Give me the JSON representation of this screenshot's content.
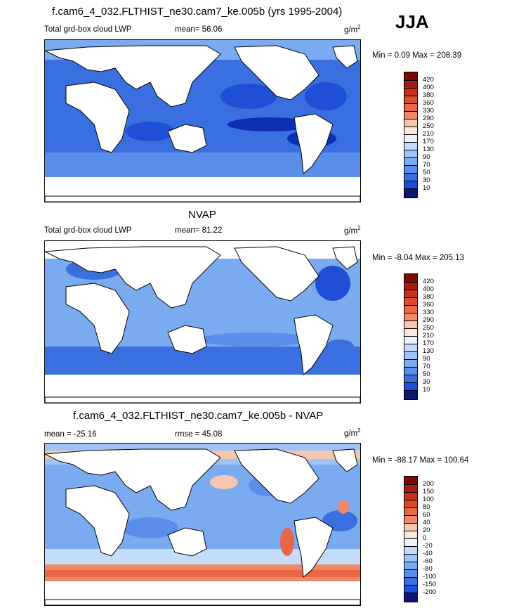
{
  "season": "JJA",
  "colors": {
    "blues": [
      "#0a1670",
      "#0d2fb3",
      "#1f4fd6",
      "#3a6fe0",
      "#5a8eea",
      "#7aaaf0",
      "#9dc4f5",
      "#c4dcf9",
      "#eaf2fd"
    ],
    "reds": [
      "#fbe7de",
      "#f6c7b0",
      "#f2a889",
      "#ee8866",
      "#e86746",
      "#dd4a2c",
      "#c8311c",
      "#a51c10",
      "#7a0a05"
    ],
    "land": "#ffffff",
    "coast": "#000000"
  },
  "panels": [
    {
      "title": "f.cam6_4_032.FLTHIST_ne30.cam7_ke.005b (yrs 1995-2004)",
      "left_label": "Total grd-box cloud LWP",
      "mid_label": "mean=  56.06",
      "units": "g/m",
      "units_exp": "2",
      "minmax": "Min =   0.09 Max = 208.39",
      "levels": [
        "420",
        "400",
        "380",
        "360",
        "330",
        "290",
        "250",
        "210",
        "170",
        "130",
        "90",
        "70",
        "50",
        "30",
        "10"
      ]
    },
    {
      "title": "NVAP",
      "left_label": "Total grd-box cloud LWP",
      "mid_label": "mean=  81.22",
      "units": "g/m",
      "units_exp": "2",
      "minmax": "Min =  -8.04 Max = 205.13",
      "levels": [
        "420",
        "400",
        "380",
        "360",
        "330",
        "290",
        "250",
        "210",
        "170",
        "130",
        "90",
        "70",
        "50",
        "30",
        "10"
      ]
    },
    {
      "title": "f.cam6_4_032.FLTHIST_ne30.cam7_ke.005b - NVAP",
      "left_label": "mean = -25.16",
      "mid_label": "rmse =  45.08",
      "units": "g/m",
      "units_exp": "2",
      "minmax": "Min = -88.17 Max = 100.64",
      "levels": [
        "200",
        "150",
        "100",
        "80",
        "60",
        "40",
        "20",
        "0",
        "-20",
        "-40",
        "-60",
        "-80",
        "-100",
        "-150",
        "-200"
      ]
    }
  ]
}
